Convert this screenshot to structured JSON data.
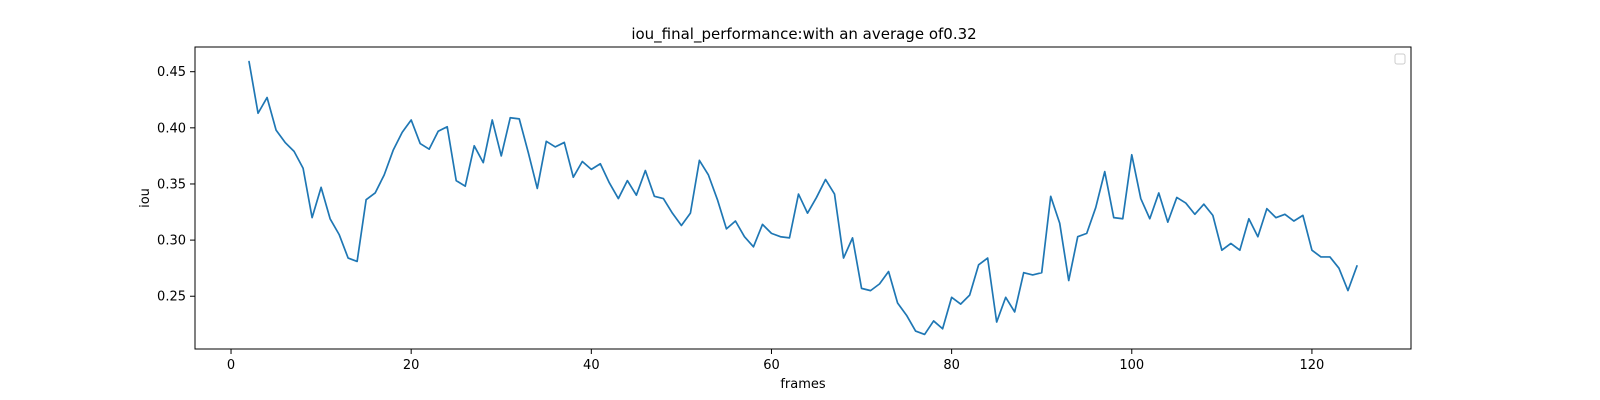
{
  "chart_data": {
    "type": "line",
    "title": "iou_final_performance:with an average of0.32",
    "xlabel": "frames",
    "ylabel": "iou",
    "xlim": [
      -4,
      131
    ],
    "ylim": [
      0.203,
      0.472
    ],
    "xticks": [
      0,
      20,
      40,
      60,
      80,
      100,
      120
    ],
    "yticks": [
      0.25,
      0.3,
      0.35,
      0.4,
      0.45
    ],
    "xtick_labels": [
      "0",
      "20",
      "40",
      "60",
      "80",
      "100",
      "120"
    ],
    "ytick_labels": [
      "0.25",
      "0.30",
      "0.35",
      "0.40",
      "0.45"
    ],
    "grid": false,
    "legend": {
      "placement": "top-right",
      "entries": []
    },
    "line_color": "#1f77b4",
    "series": [
      {
        "x": [
          2,
          3,
          4,
          5,
          6,
          7,
          8,
          9,
          10,
          11,
          12,
          13,
          14,
          15,
          16,
          17,
          18,
          19,
          20,
          21,
          22,
          23,
          24,
          25,
          26,
          27,
          28,
          29,
          30,
          31,
          32,
          33,
          34,
          35,
          36,
          37,
          38,
          39,
          40,
          41,
          42,
          43,
          44,
          45,
          46,
          47,
          48,
          49,
          50,
          51,
          52,
          53,
          54,
          55,
          56,
          57,
          58,
          59,
          60,
          61,
          62,
          63,
          64,
          65,
          66,
          67,
          68,
          69,
          70,
          71,
          72,
          73,
          74,
          75,
          76,
          77,
          78,
          79,
          80,
          81,
          82,
          83,
          84,
          85,
          86,
          87,
          88,
          89,
          90,
          91,
          92,
          93,
          94,
          95,
          96,
          97,
          98,
          99,
          100,
          101,
          102,
          103,
          104,
          105,
          106,
          107,
          108,
          109,
          110,
          111,
          112,
          113,
          114,
          115,
          116,
          117,
          118,
          119,
          120,
          121,
          122,
          123,
          124,
          125
        ],
        "values": [
          0.459,
          0.413,
          0.427,
          0.398,
          0.387,
          0.379,
          0.364,
          0.32,
          0.347,
          0.319,
          0.305,
          0.284,
          0.281,
          0.336,
          0.342,
          0.358,
          0.38,
          0.396,
          0.407,
          0.386,
          0.381,
          0.397,
          0.401,
          0.353,
          0.348,
          0.384,
          0.369,
          0.407,
          0.375,
          0.409,
          0.408,
          0.378,
          0.346,
          0.388,
          0.383,
          0.387,
          0.356,
          0.37,
          0.363,
          0.368,
          0.351,
          0.337,
          0.353,
          0.34,
          0.362,
          0.339,
          0.337,
          0.324,
          0.313,
          0.324,
          0.371,
          0.358,
          0.336,
          0.31,
          0.317,
          0.303,
          0.294,
          0.314,
          0.306,
          0.303,
          0.302,
          0.341,
          0.324,
          0.338,
          0.354,
          0.341,
          0.284,
          0.302,
          0.257,
          0.255,
          0.261,
          0.272,
          0.244,
          0.233,
          0.219,
          0.216,
          0.228,
          0.221,
          0.249,
          0.243,
          0.251,
          0.278,
          0.284,
          0.227,
          0.249,
          0.236,
          0.271,
          0.269,
          0.271,
          0.339,
          0.315,
          0.264,
          0.303,
          0.306,
          0.329,
          0.361,
          0.32,
          0.319,
          0.376,
          0.337,
          0.319,
          0.342,
          0.316,
          0.338,
          0.333,
          0.323,
          0.332,
          0.322,
          0.291,
          0.297,
          0.291,
          0.319,
          0.303,
          0.328,
          0.32,
          0.323,
          0.317,
          0.322,
          0.291,
          0.285,
          0.285,
          0.275,
          0.255,
          0.277
        ]
      }
    ]
  }
}
